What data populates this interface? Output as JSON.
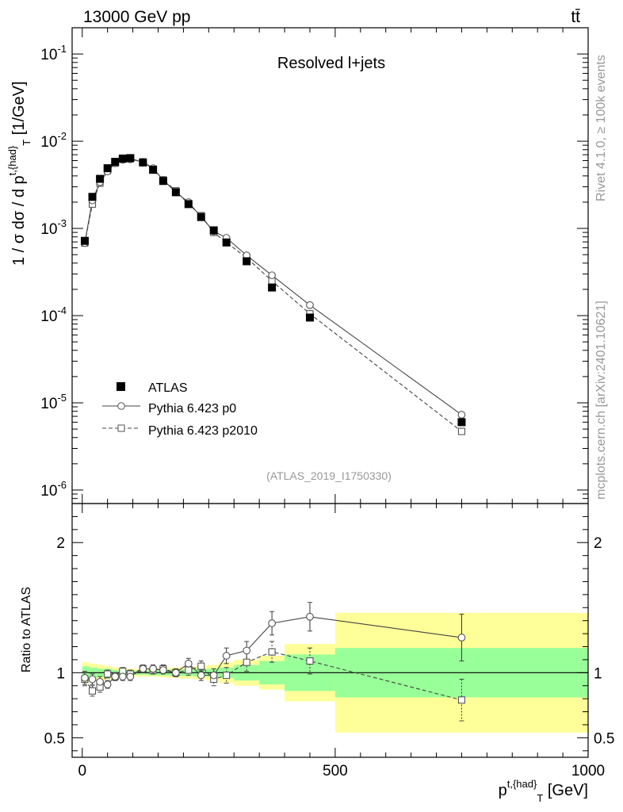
{
  "header": {
    "left": "13000 GeV pp",
    "right": "tt̄"
  },
  "side": {
    "rivet": "Rivet 4.1.0, ≥ 100k events",
    "mcplots": "mcplots.cern.ch [arXiv:2401.10621]"
  },
  "chart_data": [
    {
      "type": "line",
      "panel": "main",
      "title": "Resolved l+jets",
      "watermark": "(ATLAS_2019_I1750330)",
      "ylabel": "1 / σ dσ / d p^{t,{had}}_{T} [1/GeV]",
      "yscale": "log",
      "xlim": [
        -20,
        1000
      ],
      "ylim": [
        7e-07,
        0.2
      ],
      "ytick_labels": [
        "10^{-6}",
        "10^{-5}",
        "10^{-4}",
        "10^{-3}",
        "10^{-2}",
        "10^{-1}"
      ],
      "legend_placement": "lower-left",
      "x": [
        5,
        20,
        35,
        50,
        65,
        80,
        95,
        120,
        140,
        160,
        185,
        210,
        235,
        260,
        285,
        325,
        375,
        450,
        750
      ],
      "series": [
        {
          "name": "ATLAS",
          "style": "filled-square",
          "values": [
            0.00072,
            0.0023,
            0.0037,
            0.0049,
            0.0058,
            0.0063,
            0.0064,
            0.0057,
            0.0047,
            0.0035,
            0.0026,
            0.0019,
            0.00135,
            0.00095,
            0.00069,
            0.00042,
            0.00021,
            9.5e-05,
            6e-06
          ]
        },
        {
          "name": "Pythia 6.423 p0",
          "style": "open-circle-solid",
          "values": [
            0.00068,
            0.0021,
            0.0034,
            0.0045,
            0.0056,
            0.0061,
            0.0062,
            0.0058,
            0.0049,
            0.0036,
            0.0026,
            0.002,
            0.00135,
            0.00093,
            0.00078,
            0.00049,
            0.00029,
            0.000132,
            7.3e-06
          ]
        },
        {
          "name": "Pythia 6.423 p2010",
          "style": "open-square-dashed",
          "values": [
            0.00068,
            0.0019,
            0.0033,
            0.0046,
            0.0056,
            0.0064,
            0.0063,
            0.0058,
            0.0048,
            0.0036,
            0.0027,
            0.0019,
            0.0014,
            0.0009,
            0.00069,
            0.00046,
            0.00025,
            0.000105,
            4.7e-06
          ]
        }
      ]
    },
    {
      "type": "line",
      "panel": "ratio",
      "ylabel": "Ratio to ATLAS",
      "xlabel": "p^{t,{had}}_{T} [GeV]",
      "xlim": [
        -20,
        1000
      ],
      "ylim": [
        0.35,
        2.3
      ],
      "xtick_labels": [
        "0",
        "500",
        "1000"
      ],
      "ytick_labels": [
        "0.5",
        "1",
        "2"
      ],
      "ytick_values": [
        0.5,
        1,
        2
      ],
      "bands": {
        "edges": [
          0,
          15,
          30,
          45,
          60,
          75,
          90,
          105,
          130,
          150,
          170,
          195,
          220,
          245,
          270,
          300,
          350,
          400,
          500,
          1000
        ],
        "green_halfwidth": [
          0.05,
          0.04,
          0.03,
          0.03,
          0.02,
          0.02,
          0.015,
          0.015,
          0.02,
          0.02,
          0.025,
          0.025,
          0.03,
          0.03,
          0.04,
          0.06,
          0.09,
          0.14,
          0.19
        ],
        "yellow_halfwidth": [
          0.08,
          0.07,
          0.06,
          0.05,
          0.04,
          0.035,
          0.03,
          0.03,
          0.03,
          0.035,
          0.04,
          0.045,
          0.05,
          0.06,
          0.08,
          0.1,
          0.13,
          0.22,
          0.46
        ]
      },
      "x": [
        5,
        20,
        35,
        50,
        65,
        80,
        95,
        120,
        140,
        160,
        185,
        210,
        235,
        260,
        285,
        325,
        375,
        450,
        750
      ],
      "series": [
        {
          "name": "Pythia 6.423 p0",
          "style": "open-circle-solid",
          "values": [
            0.96,
            0.95,
            0.93,
            0.91,
            0.97,
            0.97,
            0.97,
            1.03,
            1.03,
            1.02,
            1.0,
            1.07,
            0.98,
            0.98,
            1.13,
            1.17,
            1.38,
            1.43,
            1.27
          ],
          "errors": [
            0.05,
            0.04,
            0.04,
            0.03,
            0.03,
            0.03,
            0.03,
            0.03,
            0.03,
            0.03,
            0.03,
            0.04,
            0.04,
            0.05,
            0.06,
            0.07,
            0.09,
            0.11,
            0.18
          ]
        },
        {
          "name": "Pythia 6.423 p2010",
          "style": "open-square-dashed",
          "values": [
            0.95,
            0.86,
            0.89,
            0.99,
            0.97,
            1.01,
            0.99,
            1.03,
            1.02,
            1.03,
            1.0,
            1.02,
            1.05,
            0.95,
            0.98,
            1.08,
            1.16,
            1.09,
            0.79
          ],
          "errors": [
            0.05,
            0.04,
            0.04,
            0.03,
            0.03,
            0.03,
            0.03,
            0.03,
            0.03,
            0.03,
            0.03,
            0.04,
            0.04,
            0.05,
            0.06,
            0.07,
            0.08,
            0.1,
            0.16
          ]
        }
      ]
    }
  ]
}
